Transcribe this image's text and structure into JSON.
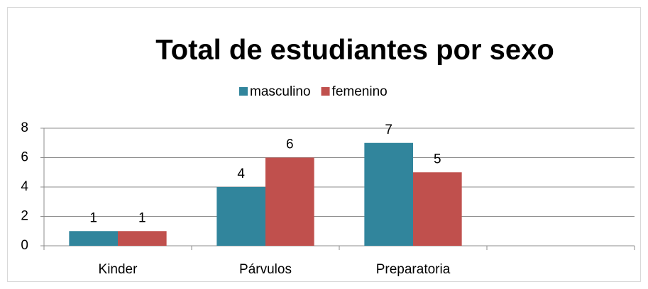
{
  "chart_data": {
    "type": "bar",
    "title": "Total de estudiantes por sexo",
    "categories": [
      "Kinder",
      "Párvulos",
      "Preparatoria",
      null
    ],
    "series": [
      {
        "name": "masculino",
        "color": "#31859c",
        "values": [
          1,
          4,
          7,
          null
        ]
      },
      {
        "name": "femenino",
        "color": "#c0504d",
        "values": [
          1,
          6,
          5,
          null
        ]
      }
    ],
    "ylim": [
      0,
      8
    ],
    "yticks": [
      0,
      2,
      4,
      6,
      8
    ],
    "grid": true,
    "legend": "top"
  }
}
